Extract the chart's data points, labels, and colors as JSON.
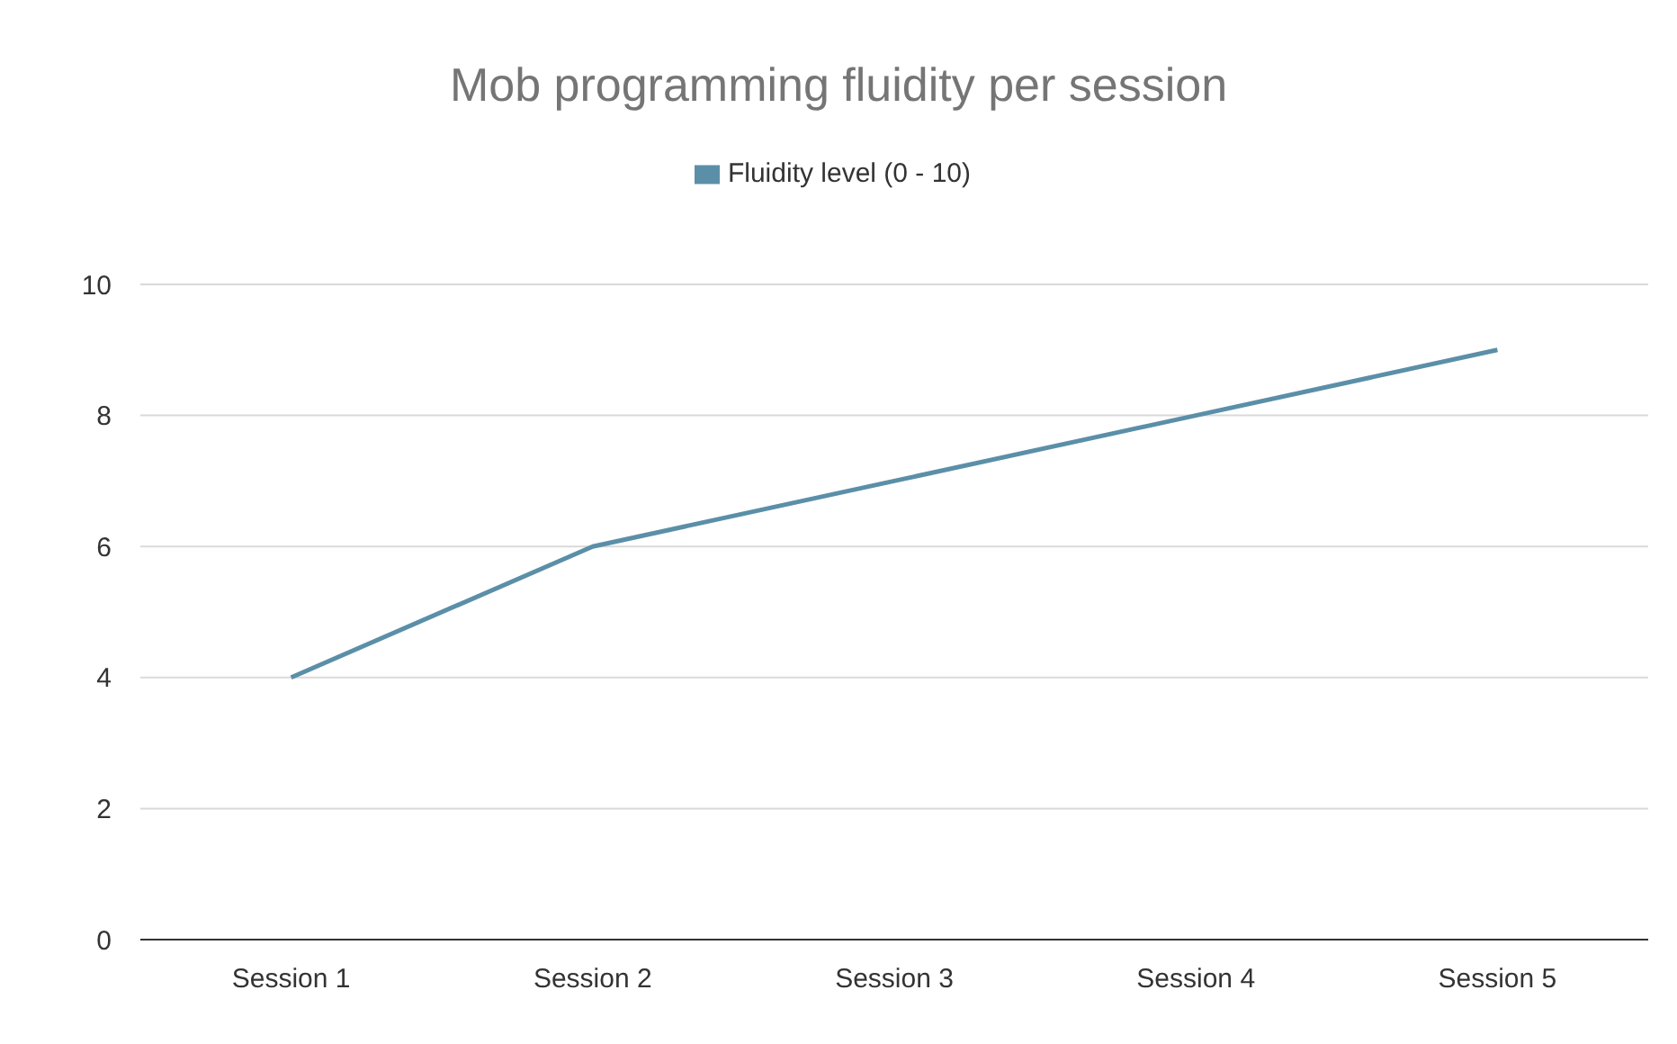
{
  "chart_data": {
    "type": "line",
    "title": "Mob programming fluidity per session",
    "categories": [
      "Session 1",
      "Session 2",
      "Session 3",
      "Session 4",
      "Session 5"
    ],
    "series": [
      {
        "name": "Fluidity level (0 - 10)",
        "color": "#5b8fa8",
        "values": [
          4,
          6,
          7,
          8,
          9
        ]
      }
    ],
    "ylim": [
      0,
      10
    ],
    "yticks": [
      0,
      2,
      4,
      6,
      8,
      10
    ],
    "grid": "y",
    "legend": "top",
    "marker": "none"
  }
}
